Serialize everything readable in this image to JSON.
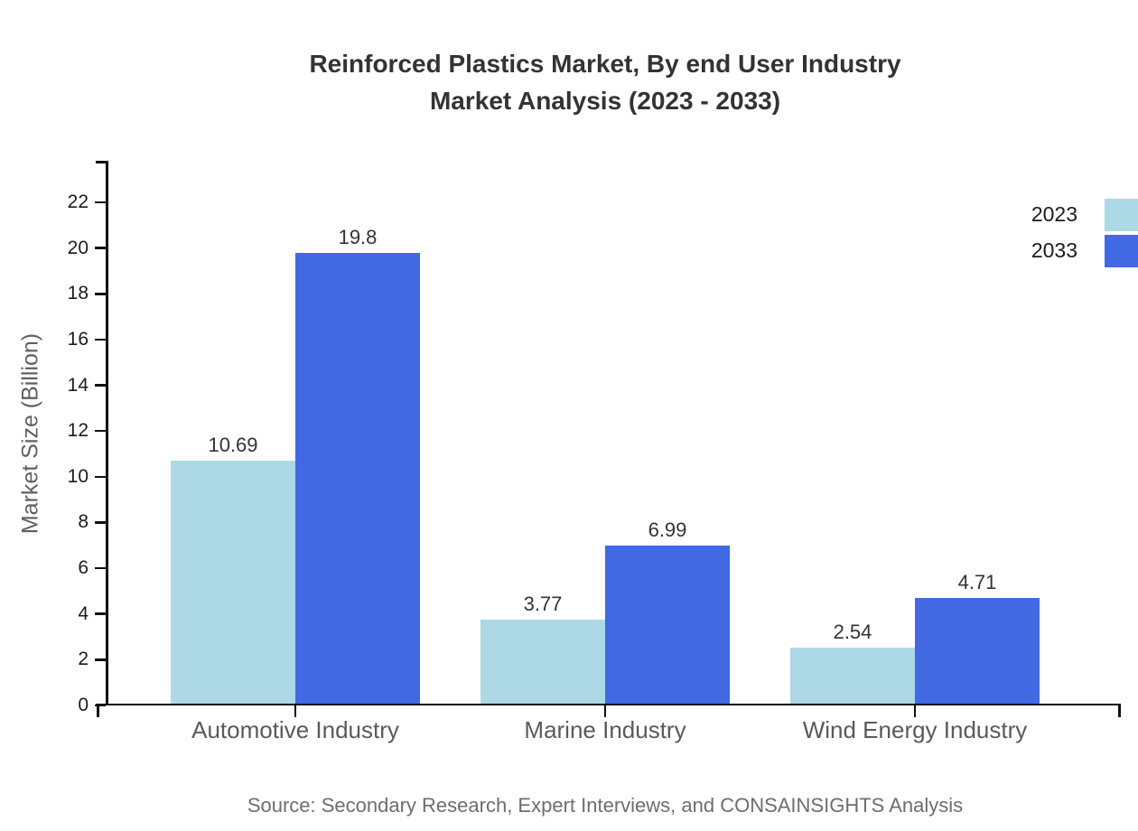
{
  "chart": {
    "title_line1": "Reinforced Plastics Market, By end User Industry",
    "title_line2": "Market Analysis (2023 - 2033)",
    "ylabel": "Market Size (Billion)",
    "source": "Source: Secondary Research, Expert Interviews, and CONSAINSIGHTS Analysis"
  },
  "chart_data": {
    "type": "bar",
    "title": "Reinforced Plastics Market, By end User Industry Market Analysis (2023 - 2033)",
    "xlabel": "",
    "ylabel": "Market Size (Billion)",
    "categories": [
      "Automotive Industry",
      "Marine Industry",
      "Wind Energy Industry"
    ],
    "series": [
      {
        "name": "2023",
        "values": [
          10.69,
          3.77,
          2.54
        ],
        "color": "#ADD8E6"
      },
      {
        "name": "2033",
        "values": [
          19.8,
          6.99,
          4.71
        ],
        "color": "#4169E1"
      }
    ],
    "ylim": [
      0,
      23.7
    ],
    "yticks": [
      0,
      2,
      4,
      6,
      8,
      10,
      12,
      14,
      16,
      18,
      20,
      22
    ],
    "grid": false,
    "bar_value_labels": true,
    "legend_position": "top-right",
    "source_note": "Source: Secondary Research, Expert Interviews, and CONSAINSIGHTS Analysis",
    "colors": {
      "axis": "#111111",
      "title_text": "#333333",
      "label_text": "#5a5a5a"
    }
  }
}
